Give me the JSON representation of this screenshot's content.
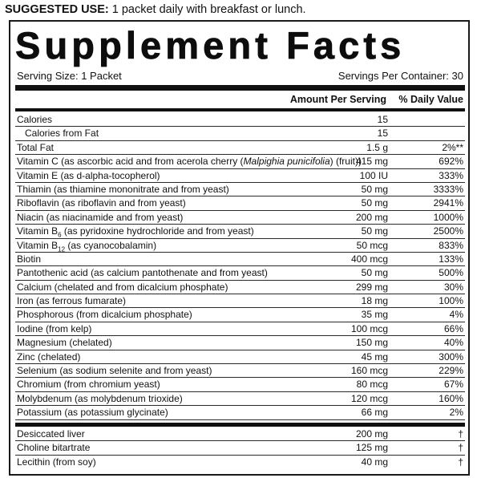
{
  "suggested_use": {
    "label": "SUGGESTED USE:",
    "text": " 1 packet daily with breakfast or lunch."
  },
  "panel": {
    "title": "Supplement Facts",
    "serving_size": "Serving Size: 1 Packet",
    "servings_per_container": "Servings Per Container: 30",
    "col_amount": "Amount Per Serving",
    "col_dv": "% Daily Value"
  },
  "nutrients": [
    {
      "name": "Calories",
      "amount": "15",
      "dv": "",
      "indent": false
    },
    {
      "name": "Calories from Fat",
      "amount": "15",
      "dv": "",
      "indent": true
    },
    {
      "name": "Total Fat",
      "amount": "1.5 g",
      "dv": "2%**",
      "indent": false
    },
    {
      "name": "Vitamin C (as ascorbic acid and from acerola cherry (",
      "italic": "Malpighia punicifolia",
      "name_after": ") (fruit))",
      "amount": "415 mg",
      "dv": "692%",
      "indent": false
    },
    {
      "name": "Vitamin E (as d-alpha-tocopherol)",
      "amount": "100 IU",
      "dv": "333%",
      "indent": false
    },
    {
      "name": "Thiamin (as thiamine mononitrate and from yeast)",
      "amount": "50 mg",
      "dv": "3333%",
      "indent": false
    },
    {
      "name": "Riboflavin (as riboflavin and from yeast)",
      "amount": "50 mg",
      "dv": "2941%",
      "indent": false
    },
    {
      "name": "Niacin (as niacinamide and from yeast)",
      "amount": "200 mg",
      "dv": "1000%",
      "indent": false
    },
    {
      "name": "Vitamin B",
      "sub": "6",
      "name_after": " (as pyridoxine hydrochloride and from yeast)",
      "amount": "50 mg",
      "dv": "2500%",
      "indent": false
    },
    {
      "name": "Vitamin B",
      "sub": "12",
      "name_after": " (as cyanocobalamin)",
      "amount": "50 mcg",
      "dv": "833%",
      "indent": false
    },
    {
      "name": "Biotin",
      "amount": "400 mcg",
      "dv": "133%",
      "indent": false
    },
    {
      "name": "Pantothenic acid (as calcium pantothenate and from yeast)",
      "amount": "50 mg",
      "dv": "500%",
      "indent": false
    },
    {
      "name": "Calcium (chelated and from dicalcium phosphate)",
      "amount": "299 mg",
      "dv": "30%",
      "indent": false
    },
    {
      "name": "Iron (as ferrous fumarate)",
      "amount": "18 mg",
      "dv": "100%",
      "indent": false
    },
    {
      "name": "Phosphorous (from dicalcium phosphate)",
      "amount": "35 mg",
      "dv": "4%",
      "indent": false
    },
    {
      "name": "Iodine (from kelp)",
      "amount": "100 mcg",
      "dv": "66%",
      "indent": false
    },
    {
      "name": "Magnesium (chelated)",
      "amount": "150 mg",
      "dv": "40%",
      "indent": false
    },
    {
      "name": "Zinc (chelated)",
      "amount": "45 mg",
      "dv": "300%",
      "indent": false
    },
    {
      "name": "Selenium (as sodium selenite and from yeast)",
      "amount": "160 mcg",
      "dv": "229%",
      "indent": false
    },
    {
      "name": "Chromium (from chromium yeast)",
      "amount": "80 mcg",
      "dv": "67%",
      "indent": false
    },
    {
      "name": "Molybdenum (as molybdenum trioxide)",
      "amount": "120 mcg",
      "dv": "160%",
      "indent": false
    },
    {
      "name": "Potassium (as potassium glycinate)",
      "amount": "66 mg",
      "dv": "2%",
      "indent": false
    }
  ],
  "other_ingredients": [
    {
      "name": "Desiccated liver",
      "amount": "200 mg",
      "dv": "†"
    },
    {
      "name": "Choline bitartrate",
      "amount": "125 mg",
      "dv": "†"
    },
    {
      "name": "Lecithin (from soy)",
      "amount": "40 mg",
      "dv": "†"
    }
  ]
}
